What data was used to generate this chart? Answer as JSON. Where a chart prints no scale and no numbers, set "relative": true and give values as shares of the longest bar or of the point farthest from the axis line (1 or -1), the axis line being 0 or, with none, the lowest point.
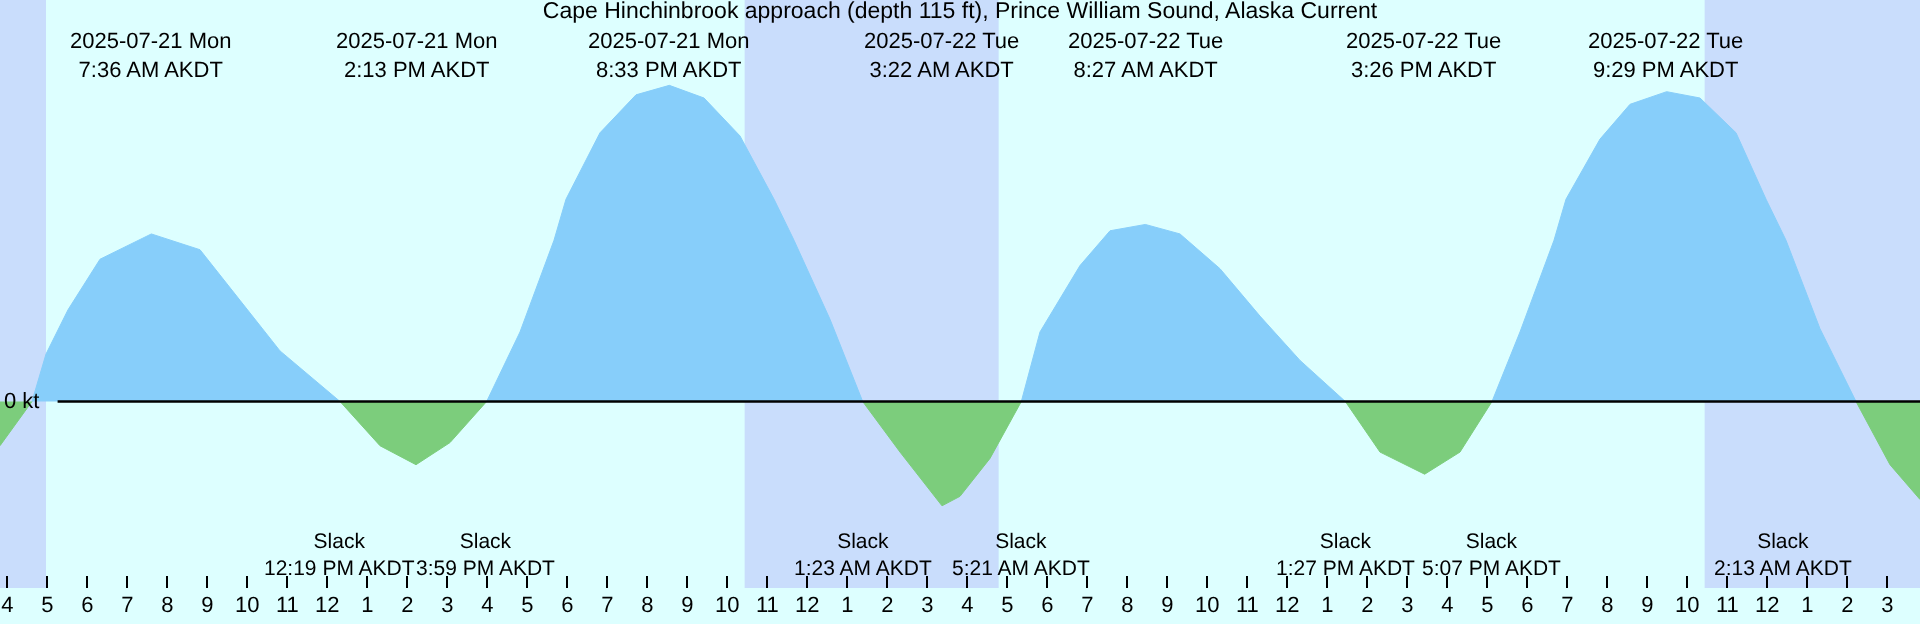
{
  "chart_data": {
    "type": "area",
    "relative": true,
    "title": "Cape Hinchinbrook approach (depth 115 ft), Prince William Sound, Alaska Current",
    "x": [
      "2025-07-21T03:49",
      "2025-07-21T04:37",
      "2025-07-21T04:58",
      "2025-07-21T05:31",
      "2025-07-21T06:19",
      "2025-07-21T07:36",
      "2025-07-21T08:49",
      "2025-07-21T09:49",
      "2025-07-21T10:49",
      "2025-07-21T12:19",
      "2025-07-21T13:19",
      "2025-07-21T14:13",
      "2025-07-21T15:04",
      "2025-07-21T15:59",
      "2025-07-21T16:49",
      "2025-07-21T17:40",
      "2025-07-21T17:58",
      "2025-07-21T18:49",
      "2025-07-21T19:43",
      "2025-07-21T20:33",
      "2025-07-21T21:25",
      "2025-07-21T22:19",
      "2025-07-21T23:10",
      "2025-07-21T23:40",
      "2025-07-22T00:34",
      "2025-07-22T01:23",
      "2025-07-22T02:19",
      "2025-07-22T03:22",
      "2025-07-22T03:49",
      "2025-07-22T04:34",
      "2025-07-22T05:21",
      "2025-07-22T05:49",
      "2025-07-22T06:49",
      "2025-07-22T07:34",
      "2025-07-22T08:27",
      "2025-07-22T09:19",
      "2025-07-22T10:19",
      "2025-07-22T11:19",
      "2025-07-22T12:19",
      "2025-07-22T13:27",
      "2025-07-22T14:19",
      "2025-07-22T15:26",
      "2025-07-22T16:19",
      "2025-07-22T17:07",
      "2025-07-22T17:49",
      "2025-07-22T18:40",
      "2025-07-22T18:58",
      "2025-07-22T19:49",
      "2025-07-22T20:34",
      "2025-07-22T21:29",
      "2025-07-22T22:19",
      "2025-07-22T23:13",
      "2025-07-22T23:58",
      "2025-07-23T00:28",
      "2025-07-23T01:19",
      "2025-07-23T02:13",
      "2025-07-23T03:04",
      "2025-07-23T03:49"
    ],
    "series": [
      {
        "color": "#87cefa",
        "values": [
          null,
          0,
          0.15,
          0.29,
          0.45,
          0.53,
          0.48,
          0.32,
          0.16,
          0,
          null,
          null,
          null,
          0,
          0.22,
          0.51,
          0.64,
          0.85,
          0.97,
          1,
          0.96,
          0.84,
          0.64,
          0.51,
          0.26,
          0,
          null,
          null,
          null,
          null,
          0,
          0.22,
          0.43,
          0.54,
          0.56,
          0.53,
          0.42,
          0.27,
          0.13,
          0,
          null,
          null,
          null,
          0,
          0.22,
          0.51,
          0.64,
          0.83,
          0.94,
          0.98,
          0.96,
          0.85,
          0.64,
          0.51,
          0.23,
          0,
          null,
          null
        ]
      },
      {
        "color": "#7ccd7c",
        "values": [
          -0.14,
          0,
          null,
          null,
          null,
          null,
          null,
          null,
          null,
          0,
          -0.14,
          -0.2,
          -0.13,
          0,
          null,
          null,
          null,
          null,
          null,
          null,
          null,
          null,
          null,
          null,
          null,
          0,
          -0.16,
          -0.33,
          -0.3,
          -0.18,
          0,
          null,
          null,
          null,
          null,
          null,
          null,
          null,
          null,
          0,
          -0.16,
          -0.23,
          -0.16,
          0,
          null,
          null,
          null,
          null,
          null,
          null,
          null,
          null,
          null,
          null,
          null,
          0,
          -0.2,
          -0.31
        ]
      }
    ],
    "xlim": [
      "2025-07-21T03:49",
      "2025-07-23T03:49"
    ],
    "xticks": [
      {
        "value": "2025-07-21T04:00",
        "label": "4"
      },
      {
        "value": "2025-07-21T05:00",
        "label": "5"
      },
      {
        "value": "2025-07-21T06:00",
        "label": "6"
      },
      {
        "value": "2025-07-21T07:00",
        "label": "7"
      },
      {
        "value": "2025-07-21T08:00",
        "label": "8"
      },
      {
        "value": "2025-07-21T09:00",
        "label": "9"
      },
      {
        "value": "2025-07-21T10:00",
        "label": "10"
      },
      {
        "value": "2025-07-21T11:00",
        "label": "11"
      },
      {
        "value": "2025-07-21T12:00",
        "label": "12"
      },
      {
        "value": "2025-07-21T13:00",
        "label": "1"
      },
      {
        "value": "2025-07-21T14:00",
        "label": "2"
      },
      {
        "value": "2025-07-21T15:00",
        "label": "3"
      },
      {
        "value": "2025-07-21T16:00",
        "label": "4"
      },
      {
        "value": "2025-07-21T17:00",
        "label": "5"
      },
      {
        "value": "2025-07-21T18:00",
        "label": "6"
      },
      {
        "value": "2025-07-21T19:00",
        "label": "7"
      },
      {
        "value": "2025-07-21T20:00",
        "label": "8"
      },
      {
        "value": "2025-07-21T21:00",
        "label": "9"
      },
      {
        "value": "2025-07-21T22:00",
        "label": "10"
      },
      {
        "value": "2025-07-21T23:00",
        "label": "11"
      },
      {
        "value": "2025-07-22T00:00",
        "label": "12"
      },
      {
        "value": "2025-07-22T01:00",
        "label": "1"
      },
      {
        "value": "2025-07-22T02:00",
        "label": "2"
      },
      {
        "value": "2025-07-22T03:00",
        "label": "3"
      },
      {
        "value": "2025-07-22T04:00",
        "label": "4"
      },
      {
        "value": "2025-07-22T05:00",
        "label": "5"
      },
      {
        "value": "2025-07-22T06:00",
        "label": "6"
      },
      {
        "value": "2025-07-22T07:00",
        "label": "7"
      },
      {
        "value": "2025-07-22T08:00",
        "label": "8"
      },
      {
        "value": "2025-07-22T09:00",
        "label": "9"
      },
      {
        "value": "2025-07-22T10:00",
        "label": "10"
      },
      {
        "value": "2025-07-22T11:00",
        "label": "11"
      },
      {
        "value": "2025-07-22T12:00",
        "label": "12"
      },
      {
        "value": "2025-07-22T13:00",
        "label": "1"
      },
      {
        "value": "2025-07-22T14:00",
        "label": "2"
      },
      {
        "value": "2025-07-22T15:00",
        "label": "3"
      },
      {
        "value": "2025-07-22T16:00",
        "label": "4"
      },
      {
        "value": "2025-07-22T17:00",
        "label": "5"
      },
      {
        "value": "2025-07-22T18:00",
        "label": "6"
      },
      {
        "value": "2025-07-22T19:00",
        "label": "7"
      },
      {
        "value": "2025-07-22T20:00",
        "label": "8"
      },
      {
        "value": "2025-07-22T21:00",
        "label": "9"
      },
      {
        "value": "2025-07-22T22:00",
        "label": "10"
      },
      {
        "value": "2025-07-22T23:00",
        "label": "11"
      },
      {
        "value": "2025-07-23T00:00",
        "label": "12"
      },
      {
        "value": "2025-07-23T01:00",
        "label": "1"
      },
      {
        "value": "2025-07-23T02:00",
        "label": "2"
      },
      {
        "value": "2025-07-23T03:00",
        "label": "3"
      }
    ],
    "bands": [
      {
        "axis": "x",
        "from": "2025-07-21T03:49",
        "to": "2025-07-21T04:58",
        "color": "#c9ddfc"
      },
      {
        "axis": "x",
        "from": "2025-07-21T22:26",
        "to": "2025-07-22T04:47",
        "color": "#c9ddfc"
      },
      {
        "axis": "x",
        "from": "2025-07-22T22:26",
        "to": "2025-07-23T03:49",
        "color": "#c9ddfc"
      }
    ],
    "ref_lines": [
      {
        "axis": "y",
        "value": 0,
        "label": "0 kt",
        "color": "#000000"
      }
    ],
    "annotations": [
      "2025-07-21 Mon\n7:36 AM AKDT",
      "2025-07-21 Mon\n2:13 PM AKDT",
      "2025-07-21 Mon\n8:33 PM AKDT",
      "2025-07-22 Tue\n3:22 AM AKDT",
      "2025-07-22 Tue\n8:27 AM AKDT",
      "2025-07-22 Tue\n3:26 PM AKDT",
      "2025-07-22 Tue\n9:29 PM AKDT",
      "Slack\n12:19 PM AKDT",
      "Slack\n3:59 PM AKDT",
      "Slack\n1:23 AM AKDT",
      "Slack\n5:21 AM AKDT",
      "Slack\n1:27 PM AKDT",
      "Slack\n5:07 PM AKDT",
      "Slack\n2:13 AM AKDT"
    ],
    "grid": false
  }
}
